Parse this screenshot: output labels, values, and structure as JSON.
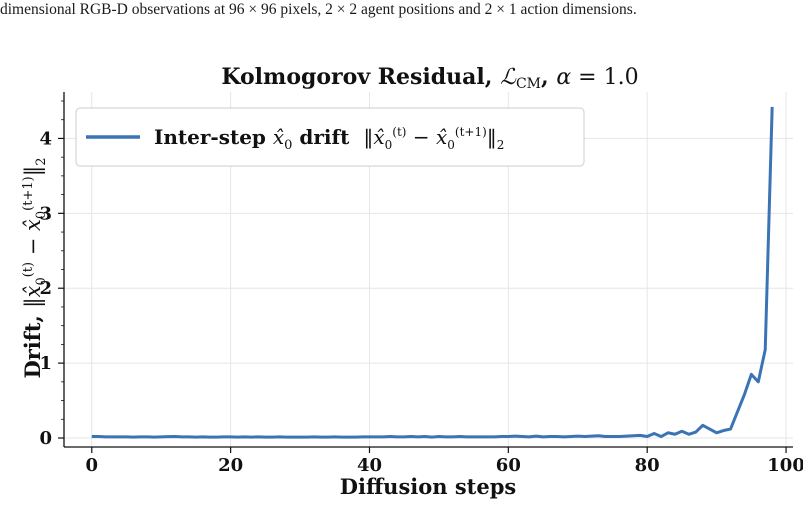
{
  "caption": "dimensional RGB-D observations at 96 × 96 pixels, 2 × 2 agent positions and 2 × 1 action dimensions.",
  "chart_data": {
    "type": "line",
    "title": "Kolmogorov Residual, ℒCM, α = 1.0",
    "xlabel": "Diffusion steps",
    "ylabel": "Drift, ‖x̂0(t) − x̂0(t+1)‖2",
    "xlim": [
      -4,
      101
    ],
    "ylim": [
      -0.12,
      4.62
    ],
    "xticks": [
      0,
      20,
      40,
      60,
      80,
      100
    ],
    "yticks": [
      0,
      1,
      2,
      3,
      4
    ],
    "grid": true,
    "legend_position": "top-left",
    "series": [
      {
        "name": "Inter-step x̂0 drift  ‖x̂0(t) − x̂0(t+1)‖2",
        "color": "#3a74b5",
        "x": [
          0,
          1,
          2,
          3,
          4,
          5,
          6,
          7,
          8,
          9,
          10,
          11,
          12,
          13,
          14,
          15,
          16,
          17,
          18,
          19,
          20,
          21,
          22,
          23,
          24,
          25,
          26,
          27,
          28,
          29,
          30,
          31,
          32,
          33,
          34,
          35,
          36,
          37,
          38,
          39,
          40,
          41,
          42,
          43,
          44,
          45,
          46,
          47,
          48,
          49,
          50,
          51,
          52,
          53,
          54,
          55,
          56,
          57,
          58,
          59,
          60,
          61,
          62,
          63,
          64,
          65,
          66,
          67,
          68,
          69,
          70,
          71,
          72,
          73,
          74,
          75,
          76,
          77,
          78,
          79,
          80,
          81,
          82,
          83,
          84,
          85,
          86,
          87,
          88,
          89,
          90,
          91,
          92,
          93,
          94,
          95,
          96,
          97,
          98
        ],
        "y": [
          0.02,
          0.02,
          0.015,
          0.015,
          0.015,
          0.015,
          0.012,
          0.015,
          0.015,
          0.012,
          0.015,
          0.018,
          0.02,
          0.015,
          0.015,
          0.012,
          0.015,
          0.012,
          0.012,
          0.015,
          0.015,
          0.012,
          0.015,
          0.012,
          0.015,
          0.012,
          0.012,
          0.015,
          0.012,
          0.012,
          0.012,
          0.012,
          0.015,
          0.012,
          0.012,
          0.015,
          0.012,
          0.012,
          0.012,
          0.015,
          0.015,
          0.015,
          0.015,
          0.02,
          0.015,
          0.015,
          0.02,
          0.015,
          0.02,
          0.012,
          0.02,
          0.015,
          0.015,
          0.02,
          0.015,
          0.015,
          0.015,
          0.015,
          0.015,
          0.02,
          0.02,
          0.025,
          0.02,
          0.015,
          0.025,
          0.015,
          0.02,
          0.02,
          0.015,
          0.02,
          0.025,
          0.02,
          0.025,
          0.03,
          0.02,
          0.02,
          0.02,
          0.025,
          0.03,
          0.035,
          0.02,
          0.06,
          0.02,
          0.07,
          0.05,
          0.09,
          0.05,
          0.08,
          0.17,
          0.12,
          0.07,
          0.1,
          0.12,
          0.35,
          0.58,
          0.85,
          0.75,
          1.18,
          4.42
        ]
      }
    ]
  }
}
